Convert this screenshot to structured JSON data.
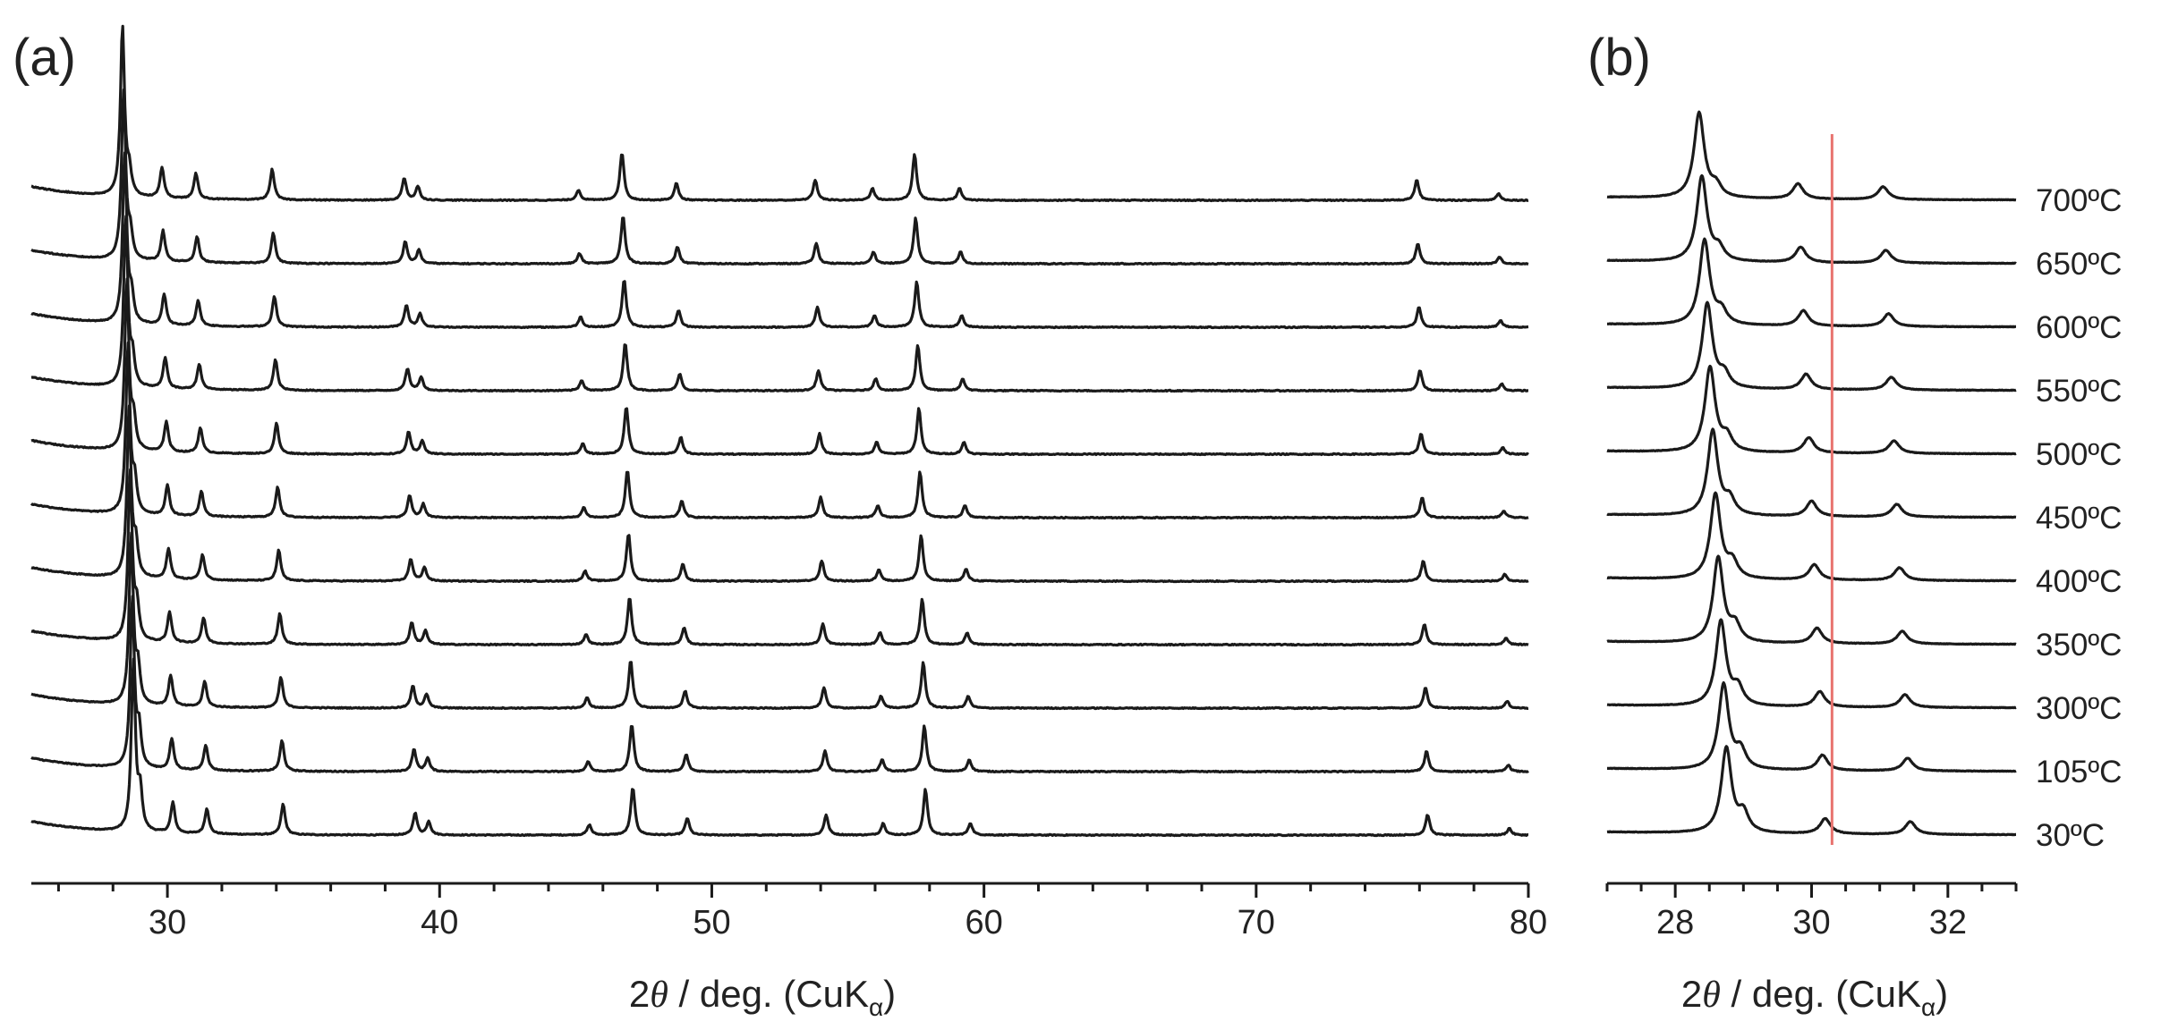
{
  "chart_data": [
    {
      "panel": "(a)",
      "type": "line",
      "xlabel": {
        "pre": "2",
        "theta": "θ",
        "post": " / deg. (CuK",
        "sub": "α",
        "close": ")"
      },
      "xlim": [
        25,
        80
      ],
      "xticks": [
        30,
        40,
        50,
        60,
        70,
        80
      ],
      "yticks": "none",
      "series_order_bottom_to_top": [
        "30°C",
        "105°C",
        "300°C",
        "350°C",
        "400°C",
        "450°C",
        "500°C",
        "550°C",
        "600°C",
        "650°C",
        "700°C"
      ],
      "reference_peaks_30C": [
        {
          "x": 28.75,
          "rel_intensity": 1.0
        },
        {
          "x": 29.0,
          "rel_intensity": 0.22
        },
        {
          "x": 30.2,
          "rel_intensity": 0.18
        },
        {
          "x": 31.45,
          "rel_intensity": 0.15
        },
        {
          "x": 34.25,
          "rel_intensity": 0.18
        },
        {
          "x": 39.1,
          "rel_intensity": 0.13
        },
        {
          "x": 39.6,
          "rel_intensity": 0.08
        },
        {
          "x": 45.5,
          "rel_intensity": 0.06
        },
        {
          "x": 47.1,
          "rel_intensity": 0.28
        },
        {
          "x": 49.1,
          "rel_intensity": 0.1
        },
        {
          "x": 54.2,
          "rel_intensity": 0.12
        },
        {
          "x": 56.3,
          "rel_intensity": 0.07
        },
        {
          "x": 57.85,
          "rel_intensity": 0.27
        },
        {
          "x": 59.5,
          "rel_intensity": 0.07
        },
        {
          "x": 76.3,
          "rel_intensity": 0.12
        },
        {
          "x": 79.3,
          "rel_intensity": 0.04
        }
      ],
      "peak_shift_deg_at_700C": -0.4,
      "grid": false,
      "legend": "none"
    },
    {
      "panel": "(b)",
      "type": "line",
      "xlabel": {
        "pre": "2",
        "theta": "θ",
        "post": " / deg. (CuK",
        "sub": "α",
        "close": ")"
      },
      "xlim": [
        27,
        33
      ],
      "xticks": [
        28,
        30,
        32
      ],
      "yticks": "none",
      "series_order_bottom_to_top": [
        "30°C",
        "105°C",
        "300°C",
        "350°C",
        "400°C",
        "450°C",
        "500°C",
        "550°C",
        "600°C",
        "650°C",
        "700°C"
      ],
      "reference_line_x": 30.3,
      "reference_line_color": "#e8736f",
      "grid": false,
      "legend": "none"
    }
  ],
  "panels": {
    "a_label": "(a)",
    "b_label": "(b)"
  },
  "temperature_labels": [
    "700ºC",
    "650ºC",
    "600ºC",
    "550ºC",
    "500ºC",
    "450ºC",
    "400ºC",
    "350ºC",
    "300ºC",
    "105ºC",
    "30ºC"
  ],
  "colors": {
    "trace": "#1a1a1a",
    "reference_line": "#e8736f"
  }
}
